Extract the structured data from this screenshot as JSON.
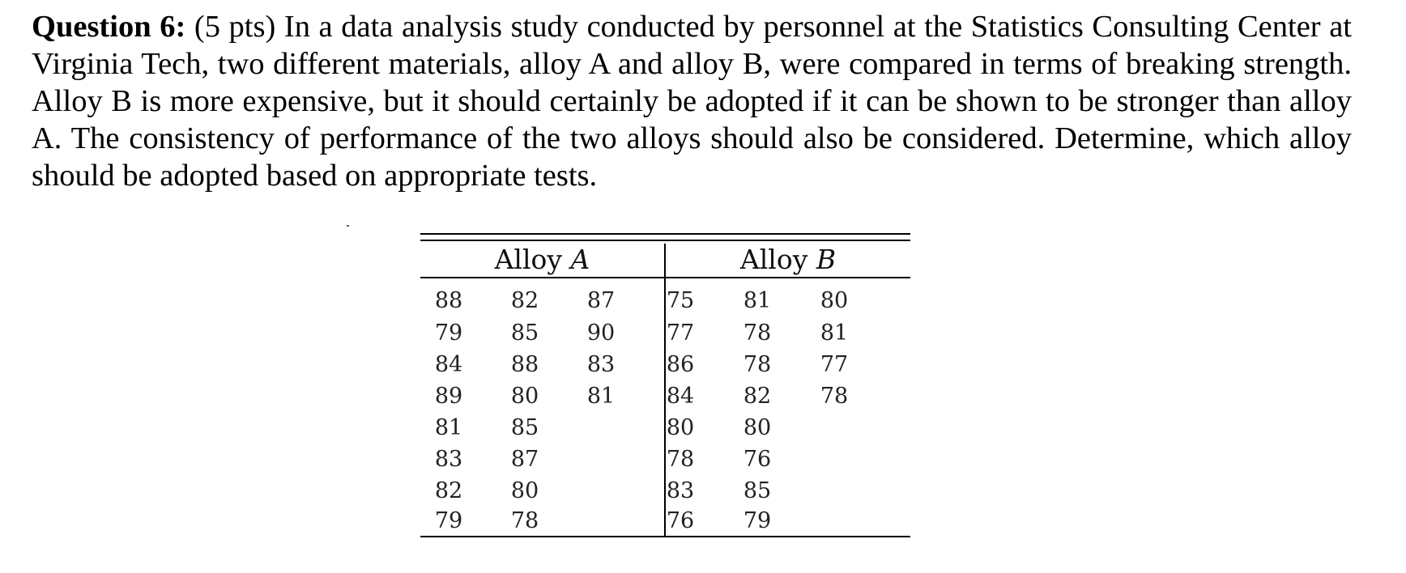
{
  "question": {
    "label": "Question 6:",
    "text": " (5 pts) In a data analysis study conducted by personnel at the Statistics Consulting Center at Virginia Tech, two different materials, alloy A and alloy B, were compared in terms of breaking strength. Alloy B is more expensive, but it should certainly be adopted if it can be shown to be stronger than alloy A. The consistency of performance of the two alloys should also be considered. Determine, which alloy should be adopted based on appropriate tests."
  },
  "table": {
    "group_a": {
      "word": "Alloy",
      "letter": "A"
    },
    "group_b": {
      "word": "Alloy",
      "letter": "B"
    },
    "rows": [
      [
        "88",
        "82",
        "87",
        "75",
        "81",
        "80"
      ],
      [
        "79",
        "85",
        "90",
        "77",
        "78",
        "81"
      ],
      [
        "84",
        "88",
        "83",
        "86",
        "78",
        "77"
      ],
      [
        "89",
        "80",
        "81",
        "84",
        "82",
        "78"
      ],
      [
        "81",
        "85",
        "",
        "80",
        "80",
        ""
      ],
      [
        "83",
        "87",
        "",
        "78",
        "76",
        ""
      ],
      [
        "82",
        "80",
        "",
        "83",
        "85",
        ""
      ],
      [
        "79",
        "78",
        "",
        "76",
        "79",
        ""
      ]
    ]
  }
}
